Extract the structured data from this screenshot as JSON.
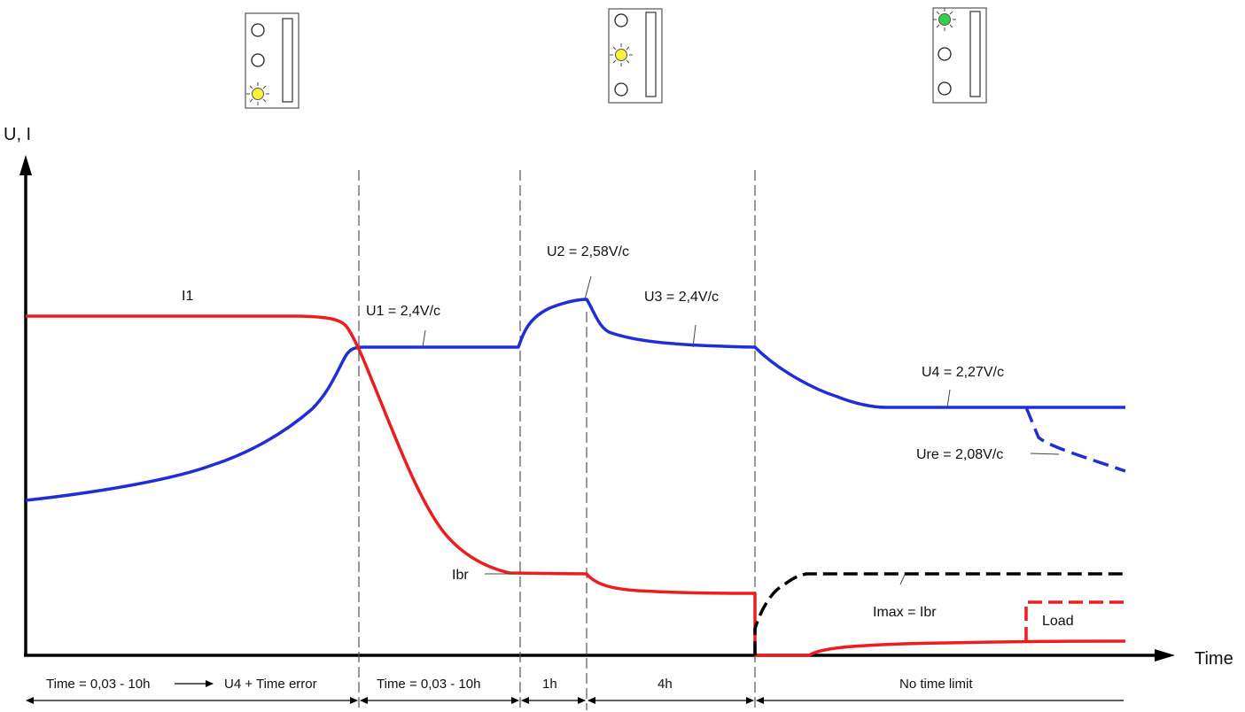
{
  "axes": {
    "y_label": "U, I",
    "x_label": "Time"
  },
  "indicators": [
    {
      "name": "stage-1-indicator",
      "lit_lamp": 3,
      "lit_color": "#f7f23a"
    },
    {
      "name": "stage-2-indicator",
      "lit_lamp": 2,
      "lit_color": "#f7f23a"
    },
    {
      "name": "stage-3-indicator",
      "lit_lamp": 1,
      "lit_color": "#34d24a"
    }
  ],
  "labels": {
    "i1": "I1",
    "u1": "U1 = 2,4V/c",
    "u2": "U2 = 2,58V/c",
    "u3": "U3 = 2,4V/c",
    "u4": "U4 = 2,27V/c",
    "ure": "Ure = 2,08V/c",
    "ibr": "Ibr",
    "imax": "Imax = Ibr",
    "load": "Load"
  },
  "phases": [
    {
      "label": "Time = 0,03 - 10h"
    },
    {
      "label": "U4 + Time error"
    },
    {
      "label": "Time = 0,03 - 10h"
    },
    {
      "label": "1h"
    },
    {
      "label": "4h"
    },
    {
      "label": "No time limit"
    }
  ],
  "colors": {
    "current": "#ee1c1c",
    "voltage": "#1f2fd6",
    "imax": "#000000",
    "axis": "#000000",
    "divider": "#666666"
  }
}
